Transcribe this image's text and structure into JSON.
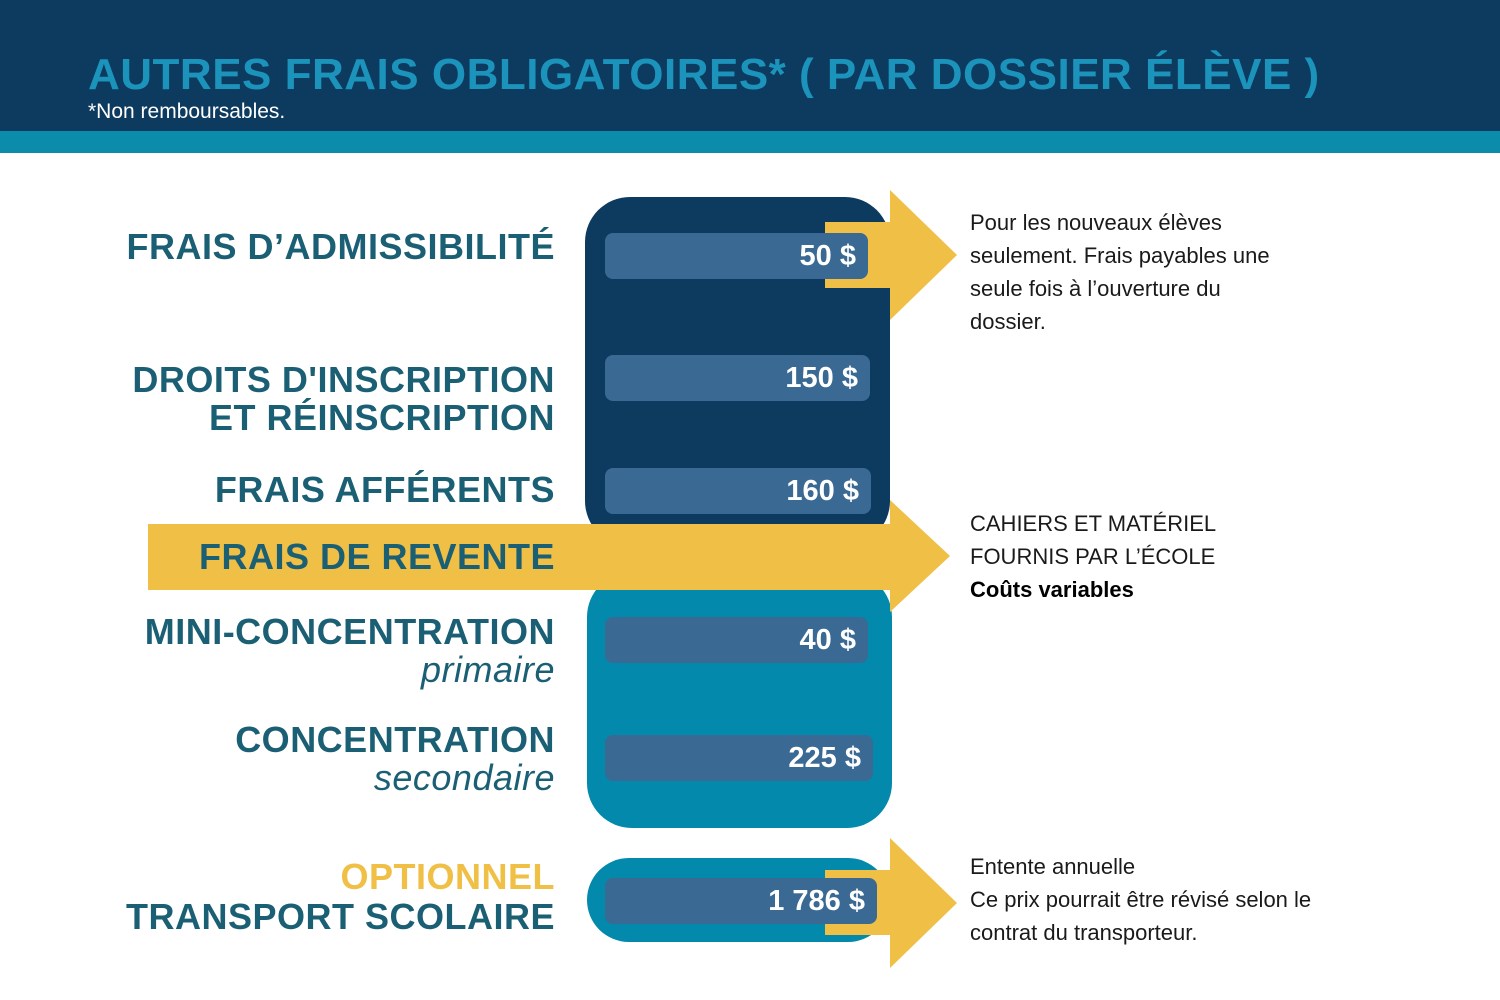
{
  "header": {
    "title": "AUTRES FRAIS OBLIGATOIRES*  ( PAR DOSSIER ÉLÈVE )",
    "subtitle": "*Non remboursables."
  },
  "colors": {
    "header": "#0d3a5f",
    "accent_teal": "#0389ab",
    "pill": "#3a6a93",
    "yellow": "#f0bf45",
    "label": "#1b5f74",
    "title": "#1b93bb"
  },
  "items": [
    {
      "label": "FRAIS D’ADMISSIBILITÉ",
      "amount": "50 $"
    },
    {
      "label_line1": "DROITS D'INSCRIPTION",
      "label_line2": "ET RÉINSCRIPTION",
      "amount": "150 $"
    },
    {
      "label": "FRAIS AFFÉRENTS",
      "amount": "160 $"
    },
    {
      "label": "FRAIS DE REVENTE"
    },
    {
      "label": "MINI-CONCENTRATION",
      "sublabel": "primaire",
      "amount": "40 $"
    },
    {
      "label": "CONCENTRATION",
      "sublabel": "secondaire",
      "amount": "225 $"
    },
    {
      "tag": "OPTIONNEL",
      "label": "TRANSPORT SCOLAIRE",
      "amount": "1 786 $"
    }
  ],
  "notes": {
    "admissibilite": [
      "Pour les nouveaux élèves",
      "seulement. Frais payables une",
      "seule fois à l’ouverture du",
      "dossier."
    ],
    "revente": [
      "CAHIERS ET MATÉRIEL",
      "FOURNIS PAR L’ÉCOLE",
      "Coûts variables"
    ],
    "transport": [
      "Entente annuelle",
      "Ce prix pourrait être révisé selon le",
      "contrat du transporteur."
    ]
  }
}
